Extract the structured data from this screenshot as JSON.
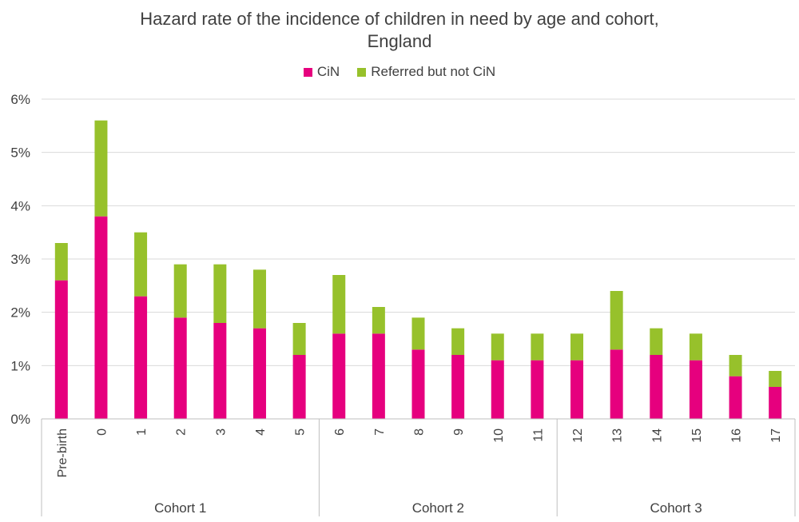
{
  "chart_data": {
    "type": "bar",
    "stacked": true,
    "title_lines": [
      "Hazard rate of the incidence of children in need by age and cohort,",
      "England"
    ],
    "legend": [
      "CiN",
      "Referred but not CiN"
    ],
    "categories": [
      "Pre-birth",
      "0",
      "1",
      "2",
      "3",
      "4",
      "5",
      "6",
      "7",
      "8",
      "9",
      "10",
      "11",
      "12",
      "13",
      "14",
      "15",
      "16",
      "17"
    ],
    "groups": [
      {
        "label": "Cohort 1",
        "start": 0,
        "end": 6
      },
      {
        "label": "Cohort 2",
        "start": 7,
        "end": 12
      },
      {
        "label": "Cohort 3",
        "start": 13,
        "end": 18
      }
    ],
    "series": [
      {
        "name": "CiN",
        "color": "#E6007E",
        "values": [
          2.6,
          3.8,
          2.3,
          1.9,
          1.8,
          1.7,
          1.2,
          1.6,
          1.6,
          1.3,
          1.2,
          1.1,
          1.1,
          1.1,
          1.3,
          1.2,
          1.1,
          0.8,
          0.6
        ]
      },
      {
        "name": "Referred but not CiN",
        "color": "#97C12B",
        "values": [
          0.7,
          1.8,
          1.2,
          1.0,
          1.1,
          1.1,
          0.6,
          1.1,
          0.5,
          0.6,
          0.5,
          0.5,
          0.5,
          0.5,
          1.1,
          0.5,
          0.5,
          0.4,
          0.3
        ]
      }
    ],
    "ylim": [
      0,
      6
    ],
    "yticks": [
      0,
      1,
      2,
      3,
      4,
      5,
      6
    ],
    "ytick_labels": [
      "0%",
      "1%",
      "2%",
      "3%",
      "4%",
      "5%",
      "6%"
    ],
    "grid": true,
    "legend_position": "top-center",
    "xlabel": "",
    "ylabel": ""
  }
}
